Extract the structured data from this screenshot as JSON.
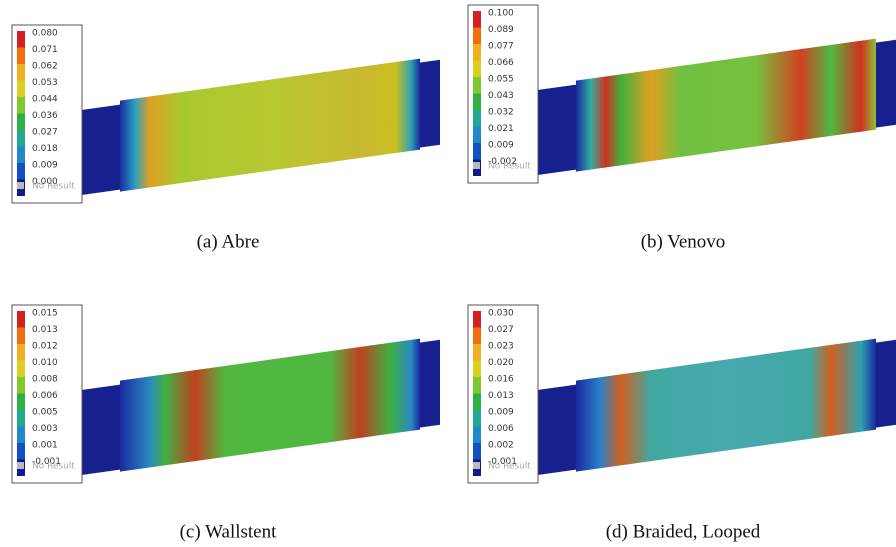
{
  "panels": [
    {
      "caption": "(a)  Abre",
      "legend": {
        "labels": [
          "0.080",
          "0.071",
          "0.062",
          "0.053",
          "0.044",
          "0.036",
          "0.027",
          "0.018",
          "0.009",
          "0.000"
        ],
        "no_result": "No Result"
      }
    },
    {
      "caption": "(b)  Venovo",
      "legend": {
        "labels": [
          "0.100",
          "0.089",
          "0.077",
          "0.066",
          "0.055",
          "0.043",
          "0.032",
          "0.021",
          "0.009",
          "-0.002"
        ],
        "no_result": "No Result"
      }
    },
    {
      "caption": "(c)  Wallstent",
      "legend": {
        "labels": [
          "0.015",
          "0.013",
          "0.012",
          "0.010",
          "0.008",
          "0.006",
          "0.005",
          "0.003",
          "0.001",
          "-0.001"
        ],
        "no_result": "No Result"
      }
    },
    {
      "caption": "(d)  Braided, Looped",
      "legend": {
        "labels": [
          "0.030",
          "0.027",
          "0.023",
          "0.020",
          "0.016",
          "0.013",
          "0.009",
          "0.006",
          "0.002",
          "-0.001"
        ],
        "no_result": "No Result"
      }
    }
  ]
}
